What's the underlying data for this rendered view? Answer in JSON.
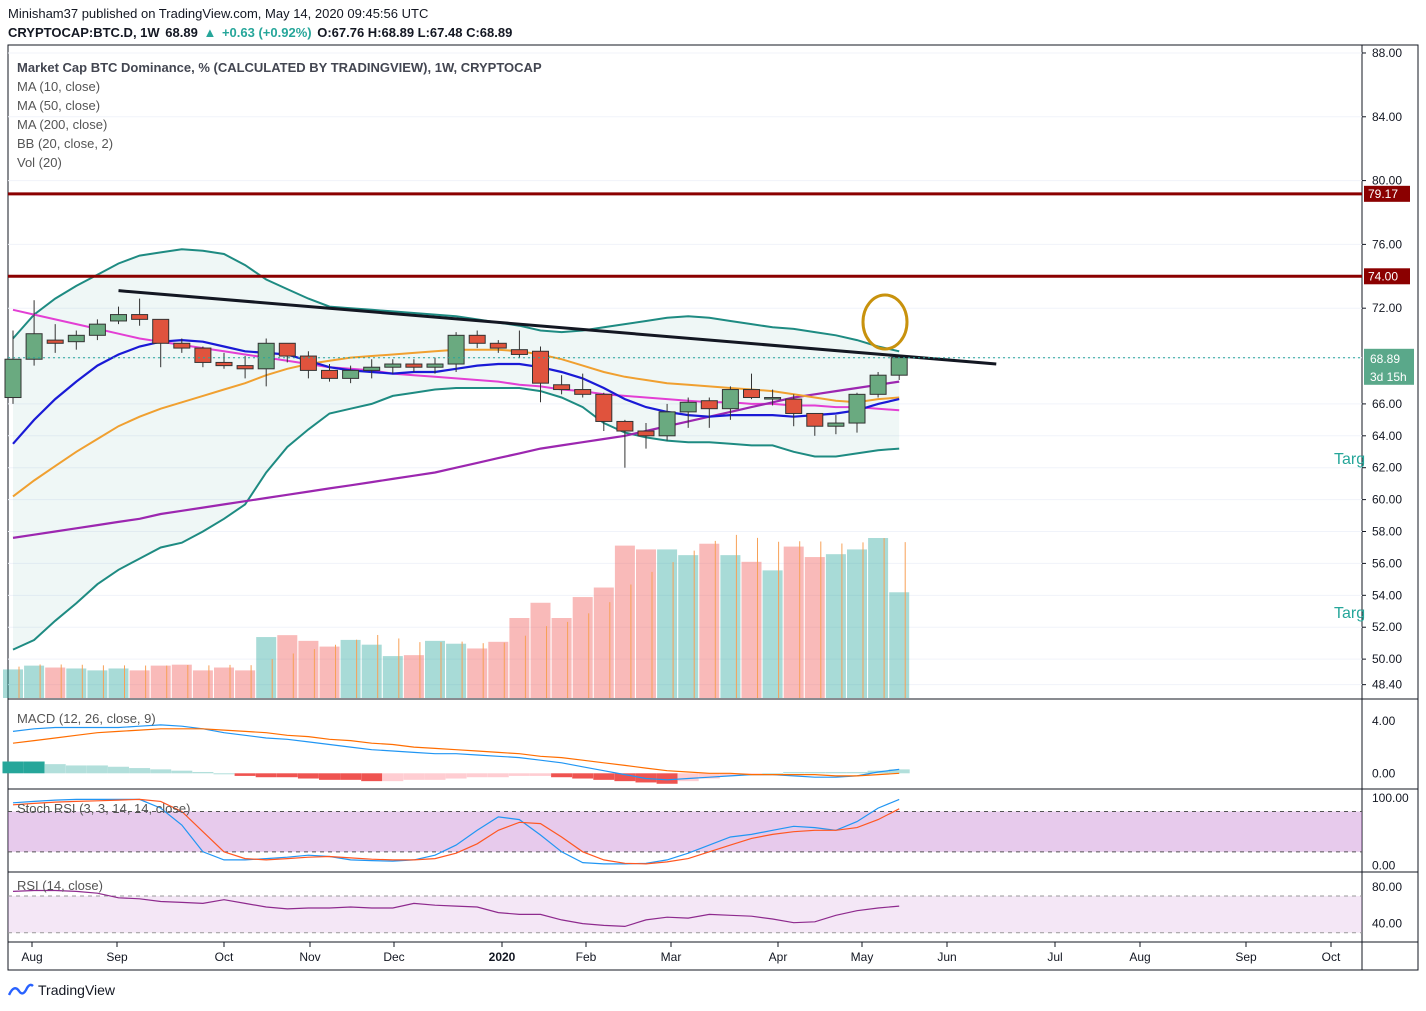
{
  "header": {
    "publisher_line": "Minisham37 published on TradingView.com, May 14, 2020 09:45:56 UTC",
    "symbol": "CRYPTOCAP:BTC.D, 1W",
    "last": "68.89",
    "change_arrow": "▲",
    "change": "+0.63 (+0.92%)",
    "ohlc": "O:67.76 H:68.89 L:67.48 C:68.89"
  },
  "legend": [
    "Market Cap BTC Dominance, % (CALCULATED BY TRADINGVIEW), 1W, CRYPTOCAP",
    "MA (10, close)",
    "MA (50, close)",
    "MA (200, close)",
    "BB (20, close, 2)",
    "Vol (20)"
  ],
  "footer": {
    "brand": "TradingView",
    "logo_icon": "tradingview-logo-icon"
  },
  "chart_data": [
    {
      "type": "candlestick",
      "name": "main-price-pane",
      "ylim": [
        47.5,
        88.5
      ],
      "y_ticks": [
        "88.00",
        "84.00",
        "80.00",
        "76.00",
        "72.00",
        "68.89",
        "66.00",
        "64.00",
        "62.00",
        "60.00",
        "58.00",
        "56.00",
        "54.00",
        "52.00",
        "50.00",
        "48.40"
      ],
      "x_ticks": [
        "Aug",
        "Sep",
        "Oct",
        "Nov",
        "Dec",
        "2020",
        "Feb",
        "Mar",
        "Apr",
        "May",
        "Jun",
        "Jul",
        "Aug",
        "Sep",
        "Oct"
      ],
      "candles": [
        {
          "o": 66.4,
          "h": 70.6,
          "l": 66.0,
          "c": 68.8
        },
        {
          "o": 68.8,
          "h": 72.5,
          "l": 68.4,
          "c": 70.4
        },
        {
          "o": 70.0,
          "h": 71.0,
          "l": 69.2,
          "c": 69.8
        },
        {
          "o": 69.9,
          "h": 70.6,
          "l": 69.4,
          "c": 70.3
        },
        {
          "o": 70.3,
          "h": 71.3,
          "l": 70.0,
          "c": 71.0
        },
        {
          "o": 71.2,
          "h": 72.1,
          "l": 71.0,
          "c": 71.6
        },
        {
          "o": 71.6,
          "h": 72.6,
          "l": 70.9,
          "c": 71.3
        },
        {
          "o": 71.3,
          "h": 71.3,
          "l": 68.3,
          "c": 69.8
        },
        {
          "o": 69.8,
          "h": 70.1,
          "l": 69.2,
          "c": 69.5
        },
        {
          "o": 69.5,
          "h": 69.6,
          "l": 68.3,
          "c": 68.6
        },
        {
          "o": 68.6,
          "h": 69.2,
          "l": 68.2,
          "c": 68.4
        },
        {
          "o": 68.4,
          "h": 69.0,
          "l": 67.6,
          "c": 68.2
        },
        {
          "o": 68.2,
          "h": 70.1,
          "l": 67.1,
          "c": 69.8
        },
        {
          "o": 69.8,
          "h": 69.8,
          "l": 68.6,
          "c": 69.0
        },
        {
          "o": 69.0,
          "h": 69.3,
          "l": 67.6,
          "c": 68.1
        },
        {
          "o": 68.1,
          "h": 68.5,
          "l": 67.4,
          "c": 67.6
        },
        {
          "o": 67.6,
          "h": 68.4,
          "l": 67.3,
          "c": 68.1
        },
        {
          "o": 68.1,
          "h": 68.8,
          "l": 67.6,
          "c": 68.3
        },
        {
          "o": 68.3,
          "h": 68.8,
          "l": 67.9,
          "c": 68.5
        },
        {
          "o": 68.5,
          "h": 68.8,
          "l": 68.0,
          "c": 68.3
        },
        {
          "o": 68.3,
          "h": 68.9,
          "l": 67.9,
          "c": 68.5
        },
        {
          "o": 68.5,
          "h": 70.5,
          "l": 68.0,
          "c": 70.3
        },
        {
          "o": 70.3,
          "h": 70.6,
          "l": 69.5,
          "c": 69.8
        },
        {
          "o": 69.8,
          "h": 70.0,
          "l": 69.2,
          "c": 69.5
        },
        {
          "o": 69.4,
          "h": 70.6,
          "l": 68.9,
          "c": 69.1
        },
        {
          "o": 69.3,
          "h": 69.6,
          "l": 66.1,
          "c": 67.3
        },
        {
          "o": 67.2,
          "h": 67.8,
          "l": 66.6,
          "c": 66.9
        },
        {
          "o": 66.9,
          "h": 67.9,
          "l": 66.4,
          "c": 66.6
        },
        {
          "o": 66.6,
          "h": 66.7,
          "l": 64.3,
          "c": 64.9
        },
        {
          "o": 64.9,
          "h": 65.0,
          "l": 62.0,
          "c": 64.3
        },
        {
          "o": 64.3,
          "h": 64.8,
          "l": 63.2,
          "c": 64.0
        },
        {
          "o": 64.0,
          "h": 66.0,
          "l": 63.7,
          "c": 65.5
        },
        {
          "o": 65.5,
          "h": 66.4,
          "l": 64.5,
          "c": 66.1
        },
        {
          "o": 66.2,
          "h": 66.4,
          "l": 64.5,
          "c": 65.7
        },
        {
          "o": 65.7,
          "h": 67.1,
          "l": 65.0,
          "c": 66.9
        },
        {
          "o": 66.9,
          "h": 67.9,
          "l": 66.3,
          "c": 66.4
        },
        {
          "o": 66.4,
          "h": 66.9,
          "l": 65.9,
          "c": 66.4
        },
        {
          "o": 66.3,
          "h": 66.6,
          "l": 64.6,
          "c": 65.4
        },
        {
          "o": 65.4,
          "h": 65.4,
          "l": 64.0,
          "c": 64.6
        },
        {
          "o": 64.6,
          "h": 65.3,
          "l": 64.1,
          "c": 64.8
        },
        {
          "o": 64.8,
          "h": 66.7,
          "l": 64.2,
          "c": 66.6
        },
        {
          "o": 66.6,
          "h": 68.0,
          "l": 66.4,
          "c": 67.8
        },
        {
          "o": 67.8,
          "h": 68.9,
          "l": 67.5,
          "c": 68.9
        }
      ],
      "ma10": [
        63.5,
        65.0,
        66.3,
        67.4,
        68.4,
        69.1,
        69.6,
        69.9,
        70.0,
        69.9,
        69.6,
        69.3,
        69.2,
        69.1,
        68.7,
        68.3,
        68.1,
        68.0,
        67.9,
        68.0,
        68.0,
        68.2,
        68.4,
        68.5,
        68.5,
        68.3,
        68.0,
        67.6,
        67.0,
        66.3,
        65.8,
        65.5,
        65.3,
        65.2,
        65.3,
        65.3,
        65.3,
        65.2,
        65.3,
        65.4,
        65.6,
        66.0,
        66.3
      ],
      "ma50": [
        60.2,
        61.2,
        62.1,
        63.0,
        63.8,
        64.6,
        65.2,
        65.7,
        66.1,
        66.5,
        66.9,
        67.3,
        67.8,
        68.2,
        68.5,
        68.7,
        68.9,
        69.0,
        69.1,
        69.2,
        69.3,
        69.4,
        69.4,
        69.4,
        69.3,
        69.1,
        68.8,
        68.4,
        68.0,
        67.7,
        67.5,
        67.3,
        67.2,
        67.1,
        67.0,
        66.9,
        66.8,
        66.6,
        66.4,
        66.2,
        66.1,
        66.3,
        66.4
      ],
      "ma200": [
        57.6,
        57.8,
        58.0,
        58.2,
        58.4,
        58.6,
        58.8,
        59.1,
        59.3,
        59.5,
        59.7,
        59.9,
        60.1,
        60.3,
        60.5,
        60.7,
        60.9,
        61.1,
        61.3,
        61.5,
        61.7,
        62.0,
        62.3,
        62.6,
        62.9,
        63.2,
        63.4,
        63.6,
        63.8,
        64.0,
        64.3,
        64.6,
        64.9,
        65.2,
        65.5,
        65.8,
        66.1,
        66.4,
        66.6,
        66.8,
        67.0,
        67.2,
        67.4
      ],
      "pink_ma": [
        71.9,
        71.6,
        71.3,
        71.0,
        70.7,
        70.4,
        70.1,
        69.9,
        69.7,
        69.5,
        69.3,
        69.1,
        68.9,
        68.7,
        68.5,
        68.3,
        68.2,
        68.1,
        67.9,
        67.8,
        67.7,
        67.6,
        67.5,
        67.4,
        67.2,
        67.1,
        66.9,
        66.8,
        66.6,
        66.5,
        66.4,
        66.3,
        66.2,
        66.1,
        66.1,
        66.0,
        66.0,
        65.9,
        65.9,
        65.8,
        65.8,
        65.7,
        65.6
      ],
      "bb_upper": [
        70.1,
        71.6,
        72.6,
        73.4,
        74.1,
        74.8,
        75.3,
        75.5,
        75.7,
        75.6,
        75.4,
        74.7,
        73.8,
        73.2,
        72.6,
        72.1,
        72.0,
        71.9,
        71.8,
        71.7,
        71.6,
        71.5,
        71.3,
        71.1,
        70.9,
        70.6,
        70.5,
        70.6,
        70.8,
        71.0,
        71.2,
        71.4,
        71.5,
        71.4,
        71.2,
        71.0,
        70.8,
        70.7,
        70.5,
        70.3,
        70.0,
        69.6,
        69.3
      ],
      "bb_mid": [
        63.8,
        65.2,
        66.4,
        67.4,
        68.3,
        69.0,
        69.5,
        69.8,
        69.9,
        69.9,
        69.7,
        69.4,
        69.2,
        69.0,
        68.8,
        68.6,
        68.4,
        68.4,
        68.3,
        68.3,
        68.3,
        68.4,
        68.4,
        68.4,
        68.3,
        68.1,
        67.9,
        67.6,
        67.2,
        66.7,
        66.2,
        65.8,
        65.6,
        65.4,
        65.4,
        65.3,
        65.3,
        65.2,
        65.1,
        65.1,
        65.2,
        65.4,
        65.7
      ],
      "bb_lower": [
        50.6,
        51.2,
        52.4,
        53.5,
        54.7,
        55.6,
        56.3,
        57.0,
        57.3,
        58.0,
        58.8,
        59.7,
        61.7,
        63.3,
        64.4,
        65.4,
        65.7,
        66.0,
        66.5,
        66.7,
        66.9,
        67.0,
        67.0,
        67.0,
        67.0,
        66.8,
        66.4,
        65.8,
        64.8,
        64.2,
        63.9,
        63.7,
        63.6,
        63.6,
        63.5,
        63.4,
        63.4,
        63.0,
        62.7,
        62.7,
        62.9,
        63.1,
        63.2
      ],
      "volume": [
        30,
        34,
        32,
        31,
        29,
        31,
        29,
        34,
        35,
        29,
        32,
        29,
        64,
        66,
        60,
        54,
        61,
        56,
        44,
        45,
        60,
        57,
        52,
        59,
        84,
        100,
        84,
        106,
        116,
        160,
        156,
        156,
        150,
        162,
        150,
        143,
        134,
        159,
        148,
        151,
        156,
        168,
        111
      ],
      "horizontal_levels": [
        {
          "value": 79.17,
          "label": "79.17"
        },
        {
          "value": 74.0,
          "label": "74.00"
        }
      ],
      "last_price_label": "68.89",
      "countdown_label": "3d 15h",
      "trendline": {
        "from": {
          "i": 5,
          "y": 73.1
        },
        "to": {
          "i": 46.6,
          "y": 68.5
        }
      },
      "target_labels": [
        "Targ",
        "Targ"
      ]
    },
    {
      "type": "line",
      "name": "MACD (12, 26, close, 9)",
      "ylim": [
        -1.2,
        5.6
      ],
      "y_ticks": [
        "4.00",
        "0.00"
      ],
      "histogram": [
        0.9,
        0.9,
        0.7,
        0.6,
        0.6,
        0.5,
        0.4,
        0.3,
        0.2,
        0.1,
        0.0,
        -0.2,
        -0.3,
        -0.3,
        -0.4,
        -0.5,
        -0.5,
        -0.6,
        -0.6,
        -0.5,
        -0.5,
        -0.4,
        -0.3,
        -0.3,
        -0.2,
        -0.2,
        -0.3,
        -0.4,
        -0.5,
        -0.6,
        -0.7,
        -0.8,
        -0.6,
        -0.4,
        -0.2,
        -0.1,
        0.0,
        0.1,
        0.1,
        0.1,
        0.1,
        0.2,
        0.3
      ],
      "macd_line": [
        3.2,
        3.4,
        3.5,
        3.5,
        3.5,
        3.5,
        3.6,
        3.7,
        3.6,
        3.4,
        3.1,
        2.9,
        2.7,
        2.6,
        2.4,
        2.2,
        2.0,
        1.8,
        1.7,
        1.6,
        1.5,
        1.5,
        1.4,
        1.3,
        1.2,
        1.0,
        0.8,
        0.5,
        0.2,
        -0.1,
        -0.4,
        -0.5,
        -0.4,
        -0.3,
        -0.2,
        -0.1,
        -0.1,
        -0.2,
        -0.3,
        -0.3,
        -0.2,
        0.1,
        0.3
      ],
      "signal_line": [
        2.3,
        2.5,
        2.7,
        2.9,
        3.1,
        3.2,
        3.3,
        3.4,
        3.4,
        3.4,
        3.3,
        3.2,
        3.1,
        2.9,
        2.8,
        2.6,
        2.5,
        2.3,
        2.2,
        2.0,
        1.9,
        1.8,
        1.7,
        1.6,
        1.5,
        1.3,
        1.2,
        1.0,
        0.8,
        0.6,
        0.4,
        0.2,
        0.1,
        0.0,
        0.0,
        -0.1,
        -0.1,
        -0.1,
        -0.1,
        -0.2,
        -0.2,
        -0.1,
        0.0
      ]
    },
    {
      "type": "line",
      "name": "Stoch RSI (3, 3, 14, 14, close)",
      "ylim": [
        -10,
        112
      ],
      "y_ticks": [
        "100.00",
        "0.00"
      ],
      "bands": [
        80,
        20
      ],
      "k_line": [
        93,
        95,
        97,
        98,
        98,
        98,
        98,
        85,
        60,
        20,
        8,
        8,
        10,
        12,
        15,
        13,
        8,
        7,
        6,
        8,
        15,
        30,
        52,
        72,
        68,
        45,
        20,
        4,
        2,
        2,
        3,
        8,
        18,
        30,
        42,
        46,
        52,
        58,
        56,
        52,
        65,
        85,
        98
      ],
      "d_line": [
        90,
        92,
        94,
        95,
        96,
        97,
        98,
        95,
        80,
        50,
        20,
        10,
        8,
        10,
        12,
        13,
        11,
        9,
        8,
        8,
        10,
        18,
        32,
        52,
        64,
        62,
        42,
        20,
        8,
        3,
        2,
        5,
        10,
        20,
        30,
        40,
        46,
        50,
        52,
        52,
        56,
        68,
        84
      ]
    },
    {
      "type": "line",
      "name": "RSI (14, close)",
      "ylim": [
        20,
        95
      ],
      "y_ticks": [
        "80.00",
        "40.00"
      ],
      "bands": [
        70,
        30
      ],
      "rsi_line": [
        75,
        76,
        76,
        75,
        73,
        68,
        67,
        64,
        63,
        62,
        66,
        62,
        58,
        56,
        57,
        57,
        58,
        57,
        57,
        62,
        60,
        59,
        58,
        52,
        50,
        50,
        44,
        40,
        38,
        37,
        44,
        47,
        46,
        50,
        49,
        48,
        45,
        41,
        42,
        49,
        54,
        57,
        59
      ]
    }
  ]
}
